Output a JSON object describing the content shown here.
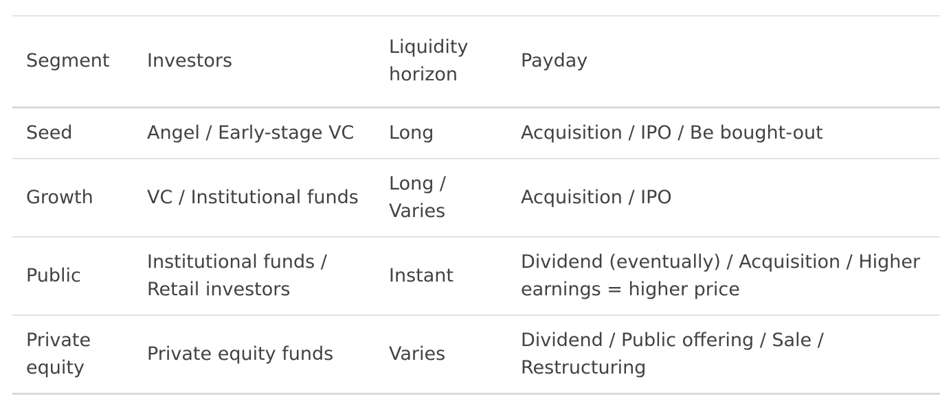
{
  "table": {
    "headers": [
      "Segment",
      "Investors",
      "Liquidity horizon",
      "Payday"
    ],
    "rows": [
      [
        "Seed",
        "Angel / Early-stage VC",
        "Long",
        "Acquisition / IPO / Be bought-out"
      ],
      [
        "Growth",
        "VC / Institutional funds",
        "Long / Varies",
        "Acquisition / IPO"
      ],
      [
        "Public",
        "Institutional funds / Retail investors",
        "Instant",
        "Dividend (eventually) / Acquisition / Higher earnings = higher price"
      ],
      [
        "Private equity",
        "Private equity funds",
        "Varies",
        "Dividend / Public offering / Sale / Restructuring"
      ]
    ]
  }
}
